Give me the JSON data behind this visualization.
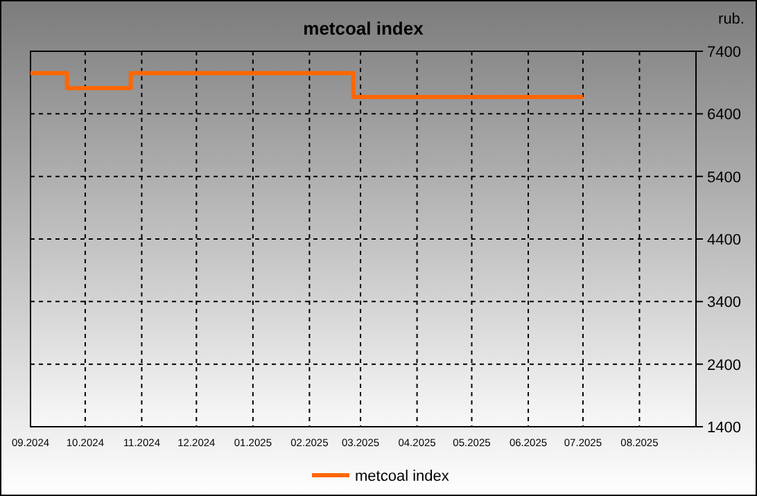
{
  "chart_data": {
    "type": "step",
    "title": "metcoal index",
    "ylabel": "rub.",
    "x": [
      "2024-09-01",
      "2024-09-21",
      "2024-10-26",
      "2025-02-25",
      "2025-07-01"
    ],
    "series": [
      {
        "name": "metcoal index",
        "color": "#ff6600",
        "values": [
          7050,
          6810,
          7050,
          6670,
          6670
        ]
      }
    ],
    "xlim": [
      "2024-09-01",
      "2025-09-01"
    ],
    "xticks": [
      {
        "value": "2024-09-01",
        "label": "09.2024"
      },
      {
        "value": "2024-10-01",
        "label": "10.2024"
      },
      {
        "value": "2024-11-01",
        "label": "11.2024"
      },
      {
        "value": "2024-12-01",
        "label": "12.2024"
      },
      {
        "value": "2025-01-01",
        "label": "01.2025"
      },
      {
        "value": "2025-02-01",
        "label": "02.2025"
      },
      {
        "value": "2025-03-01",
        "label": "03.2025"
      },
      {
        "value": "2025-04-01",
        "label": "04.2025"
      },
      {
        "value": "2025-05-01",
        "label": "05.2025"
      },
      {
        "value": "2025-06-01",
        "label": "06.2025"
      },
      {
        "value": "2025-07-01",
        "label": "07.2025"
      },
      {
        "value": "2025-08-01",
        "label": "08.2025"
      }
    ],
    "ylim": [
      1400,
      7400
    ],
    "yticks": [
      1400,
      2400,
      3400,
      4400,
      5400,
      6400,
      7400
    ],
    "grid": true,
    "legend": "bottom",
    "line_style": "solid"
  }
}
